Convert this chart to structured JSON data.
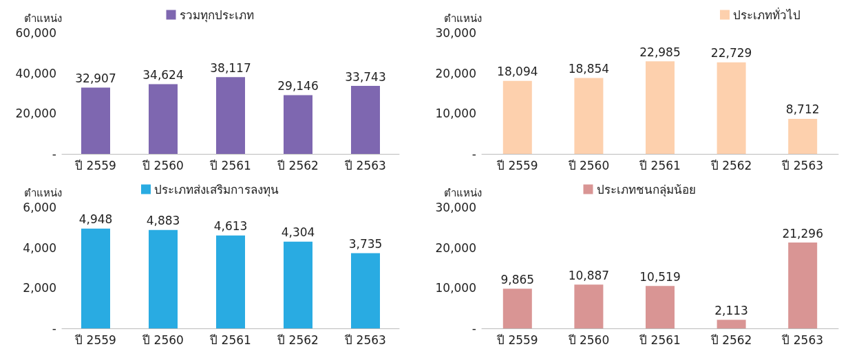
{
  "chart_data": [
    {
      "type": "bar",
      "ylabel": "ตำแหน่ง",
      "categories": [
        "ปี 2559",
        "ปี 2560",
        "ปี 2561",
        "ปี 2562",
        "ปี 2563"
      ],
      "series": [
        {
          "name": "รวมทุกประเภท",
          "color": "#7e67b0",
          "values": [
            32907,
            34624,
            38117,
            29146,
            33743
          ],
          "value_labels": [
            "32,907",
            "34,624",
            "38,117",
            "29,146",
            "33,743"
          ]
        }
      ],
      "ylim": [
        0,
        60000
      ],
      "yticks": [
        {
          "value": 0,
          "label": "-"
        },
        {
          "value": 20000,
          "label": "20,000"
        },
        {
          "value": 40000,
          "label": "40,000"
        },
        {
          "value": 60000,
          "label": "60,000"
        }
      ],
      "grid": false,
      "legend": "top"
    },
    {
      "type": "bar",
      "ylabel": "ตำแหน่ง",
      "categories": [
        "ปี 2559",
        "ปี 2560",
        "ปี 2561",
        "ปี 2562",
        "ปี 2563"
      ],
      "series": [
        {
          "name": "ประเภททั่วไป",
          "color": "#fdd0ad",
          "values": [
            18094,
            18854,
            22985,
            22729,
            8712
          ],
          "value_labels": [
            "18,094",
            "18,854",
            "22,985",
            "22,729",
            "8,712"
          ]
        }
      ],
      "ylim": [
        0,
        30000
      ],
      "yticks": [
        {
          "value": 0,
          "label": "-"
        },
        {
          "value": 10000,
          "label": "10,000"
        },
        {
          "value": 20000,
          "label": "20,000"
        },
        {
          "value": 30000,
          "label": "30,000"
        }
      ],
      "grid": false,
      "legend": "top right"
    },
    {
      "type": "bar",
      "ylabel": "ตำแหน่ง",
      "categories": [
        "ปี 2559",
        "ปี 2560",
        "ปี 2561",
        "ปี 2562",
        "ปี 2563"
      ],
      "series": [
        {
          "name": "ประเภทส่งเสริมการลงทุน",
          "color": "#29abe2",
          "values": [
            4948,
            4883,
            4613,
            4304,
            3735
          ],
          "value_labels": [
            "4,948",
            "4,883",
            "4,613",
            "4,304",
            "3,735"
          ]
        }
      ],
      "ylim": [
        0,
        6000
      ],
      "yticks": [
        {
          "value": 0,
          "label": "-"
        },
        {
          "value": 2000,
          "label": "2,000"
        },
        {
          "value": 4000,
          "label": "4,000"
        },
        {
          "value": 6000,
          "label": "6,000"
        }
      ],
      "grid": false,
      "legend": "top"
    },
    {
      "type": "bar",
      "ylabel": "ตำแหน่ง",
      "categories": [
        "ปี 2559",
        "ปี 2560",
        "ปี 2561",
        "ปี 2562",
        "ปี 2563"
      ],
      "series": [
        {
          "name": "ประเภทชนกลุ่มน้อย",
          "color": "#d99594",
          "values": [
            9865,
            10887,
            10519,
            2113,
            21296
          ],
          "value_labels": [
            "9,865",
            "10,887",
            "10,519",
            "2,113",
            "21,296"
          ]
        }
      ],
      "ylim": [
        0,
        30000
      ],
      "yticks": [
        {
          "value": 0,
          "label": "-"
        },
        {
          "value": 10000,
          "label": "10,000"
        },
        {
          "value": 20000,
          "label": "20,000"
        },
        {
          "value": 30000,
          "label": "30,000"
        }
      ],
      "grid": false,
      "legend": "top"
    }
  ]
}
